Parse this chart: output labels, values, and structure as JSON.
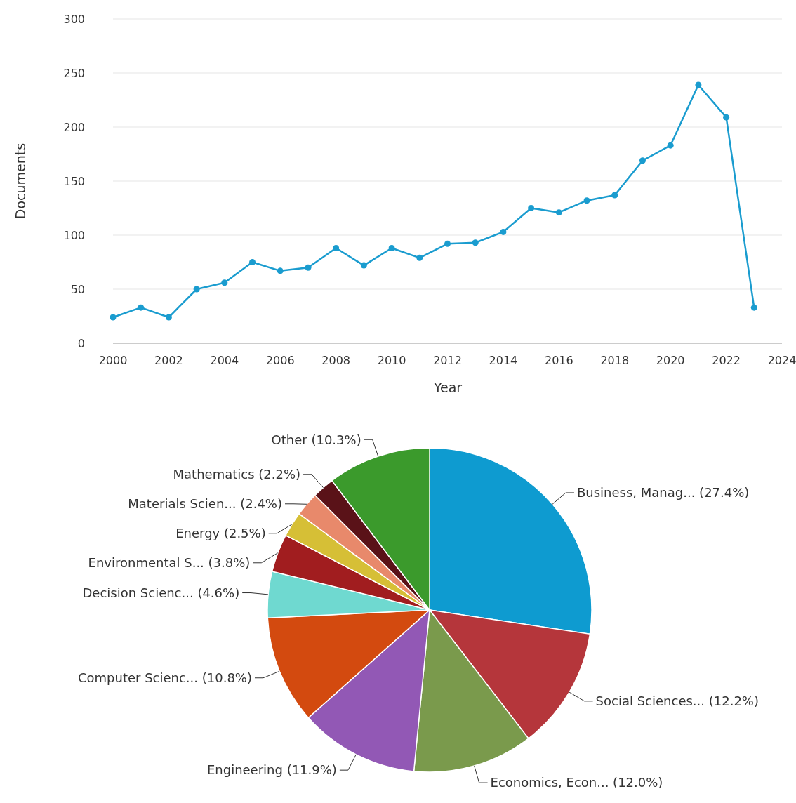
{
  "chart_data": [
    {
      "type": "line",
      "xlabel": "Year",
      "ylabel": "Documents",
      "x": [
        2000,
        2001,
        2002,
        2003,
        2004,
        2005,
        2006,
        2007,
        2008,
        2009,
        2010,
        2011,
        2012,
        2013,
        2014,
        2015,
        2016,
        2017,
        2018,
        2019,
        2020,
        2021,
        2022,
        2023
      ],
      "series": [
        {
          "color": "#1a9ccf",
          "values": [
            24,
            33,
            24,
            50,
            56,
            75,
            67,
            70,
            88,
            72,
            88,
            79,
            92,
            93,
            103,
            125,
            121,
            132,
            137,
            169,
            183,
            239,
            209,
            33
          ]
        }
      ],
      "xlim": [
        2000,
        2024
      ],
      "xticks": [
        2000,
        2002,
        2004,
        2006,
        2008,
        2010,
        2012,
        2014,
        2016,
        2018,
        2020,
        2022,
        2024
      ],
      "ylim": [
        0,
        300
      ],
      "yticks": [
        0,
        50,
        100,
        150,
        200,
        250,
        300
      ],
      "grid": "y",
      "marker": "circle"
    },
    {
      "type": "pie",
      "categories": [
        "Business, Manag...",
        "Social Sciences...",
        "Economics, Econ...",
        "Engineering",
        "Computer Scienc...",
        "Decision Scienc...",
        "Environmental S...",
        "Energy",
        "Materials Scien...",
        "Mathematics",
        "Other"
      ],
      "values": [
        27.4,
        12.2,
        12.0,
        11.9,
        10.8,
        4.6,
        3.8,
        2.5,
        2.4,
        2.2,
        10.3
      ],
      "value_labels": [
        "(27.4%)",
        "(12.2%)",
        "(12.0%)",
        "(11.9%)",
        "(10.8%)",
        "(4.6%)",
        "(3.8%)",
        "(2.5%)",
        "(2.4%)",
        "(2.2%)",
        "(10.3%)"
      ],
      "colors": [
        "#0e9bd0",
        "#b5363b",
        "#7a9a4c",
        "#9258b5",
        "#d34a0f",
        "#6fd9d0",
        "#a11d1f",
        "#d6bf36",
        "#e8896b",
        "#5a1218",
        "#3b9a2c"
      ]
    }
  ]
}
